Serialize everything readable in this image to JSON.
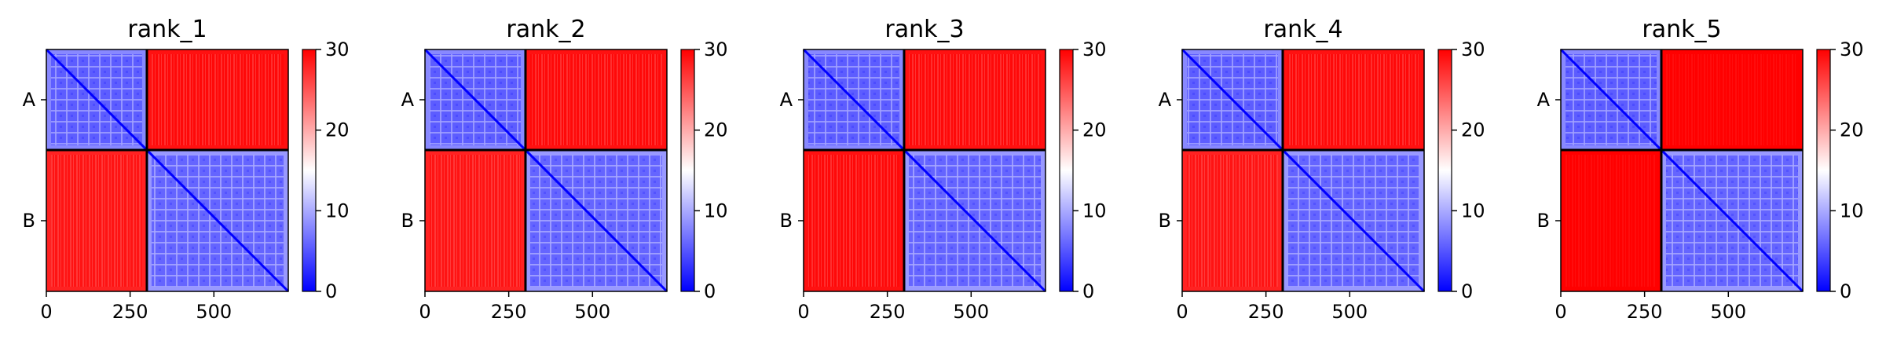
{
  "chart_data": [
    {
      "type": "heatmap",
      "title": "rank_1",
      "xlim": [
        0,
        722
      ],
      "x_ticks": [
        0,
        250,
        500
      ],
      "x_tick_labels": [
        "0",
        "250",
        "500"
      ],
      "boundary": 300,
      "y_labels": [
        "A",
        "B"
      ],
      "colorbar": {
        "min": 0,
        "max": 30,
        "ticks": [
          0,
          10,
          20,
          30
        ],
        "tick_labels": [
          "0",
          "10",
          "20",
          "30"
        ],
        "colors": [
          "#0000ff",
          "#ffffff",
          "#ff0000"
        ]
      },
      "blocks": [
        {
          "row": "A",
          "col": "A",
          "mean_value": 8
        },
        {
          "row": "A",
          "col": "B",
          "mean_value": 29
        },
        {
          "row": "B",
          "col": "A",
          "mean_value": 28
        },
        {
          "row": "B",
          "col": "B",
          "mean_value": 9
        }
      ]
    },
    {
      "type": "heatmap",
      "title": "rank_2",
      "xlim": [
        0,
        722
      ],
      "x_ticks": [
        0,
        250,
        500
      ],
      "x_tick_labels": [
        "0",
        "250",
        "500"
      ],
      "boundary": 300,
      "y_labels": [
        "A",
        "B"
      ],
      "colorbar": {
        "min": 0,
        "max": 30,
        "ticks": [
          0,
          10,
          20,
          30
        ],
        "tick_labels": [
          "0",
          "10",
          "20",
          "30"
        ],
        "colors": [
          "#0000ff",
          "#ffffff",
          "#ff0000"
        ]
      },
      "blocks": [
        {
          "row": "A",
          "col": "A",
          "mean_value": 8
        },
        {
          "row": "A",
          "col": "B",
          "mean_value": 29
        },
        {
          "row": "B",
          "col": "A",
          "mean_value": 28
        },
        {
          "row": "B",
          "col": "B",
          "mean_value": 9
        }
      ]
    },
    {
      "type": "heatmap",
      "title": "rank_3",
      "xlim": [
        0,
        722
      ],
      "x_ticks": [
        0,
        250,
        500
      ],
      "x_tick_labels": [
        "0",
        "250",
        "500"
      ],
      "boundary": 300,
      "y_labels": [
        "A",
        "B"
      ],
      "colorbar": {
        "min": 0,
        "max": 30,
        "ticks": [
          0,
          10,
          20,
          30
        ],
        "tick_labels": [
          "0",
          "10",
          "20",
          "30"
        ],
        "colors": [
          "#0000ff",
          "#ffffff",
          "#ff0000"
        ]
      },
      "blocks": [
        {
          "row": "A",
          "col": "A",
          "mean_value": 8
        },
        {
          "row": "A",
          "col": "B",
          "mean_value": 29
        },
        {
          "row": "B",
          "col": "A",
          "mean_value": 29
        },
        {
          "row": "B",
          "col": "B",
          "mean_value": 9
        }
      ]
    },
    {
      "type": "heatmap",
      "title": "rank_4",
      "xlim": [
        0,
        722
      ],
      "x_ticks": [
        0,
        250,
        500
      ],
      "x_tick_labels": [
        "0",
        "250",
        "500"
      ],
      "boundary": 300,
      "y_labels": [
        "A",
        "B"
      ],
      "colorbar": {
        "min": 0,
        "max": 30,
        "ticks": [
          0,
          10,
          20,
          30
        ],
        "tick_labels": [
          "0",
          "10",
          "20",
          "30"
        ],
        "colors": [
          "#0000ff",
          "#ffffff",
          "#ff0000"
        ]
      },
      "blocks": [
        {
          "row": "A",
          "col": "A",
          "mean_value": 8
        },
        {
          "row": "A",
          "col": "B",
          "mean_value": 29
        },
        {
          "row": "B",
          "col": "A",
          "mean_value": 28
        },
        {
          "row": "B",
          "col": "B",
          "mean_value": 9
        }
      ]
    },
    {
      "type": "heatmap",
      "title": "rank_5",
      "xlim": [
        0,
        722
      ],
      "x_ticks": [
        0,
        250,
        500
      ],
      "x_tick_labels": [
        "0",
        "250",
        "500"
      ],
      "boundary": 300,
      "y_labels": [
        "A",
        "B"
      ],
      "colorbar": {
        "min": 0,
        "max": 30,
        "ticks": [
          0,
          10,
          20,
          30
        ],
        "tick_labels": [
          "0",
          "10",
          "20",
          "30"
        ],
        "colors": [
          "#0000ff",
          "#ffffff",
          "#ff0000"
        ]
      },
      "blocks": [
        {
          "row": "A",
          "col": "A",
          "mean_value": 8
        },
        {
          "row": "A",
          "col": "B",
          "mean_value": 30
        },
        {
          "row": "B",
          "col": "A",
          "mean_value": 30
        },
        {
          "row": "B",
          "col": "B",
          "mean_value": 9
        }
      ]
    }
  ]
}
